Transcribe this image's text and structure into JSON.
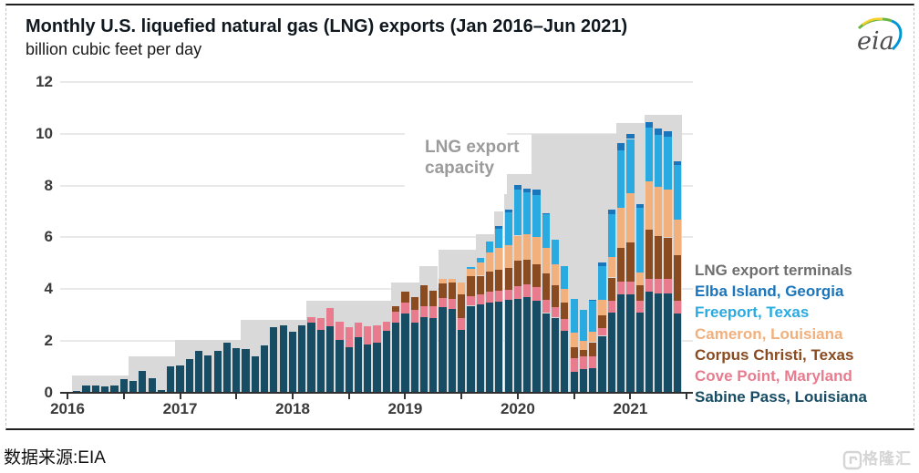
{
  "card": {
    "title": "Monthly U.S. liquefied natural gas (LNG) exports (Jan 2016–Jun 2021)",
    "subtitle": "billion cubic feet per day",
    "logo_text": "eia"
  },
  "capacity_label": {
    "line1": "LNG export",
    "line2": "capacity"
  },
  "legend": {
    "items": [
      {
        "label": "LNG export terminals",
        "color": "#6e6e6e"
      },
      {
        "label": "Elba Island, Georgia",
        "color": "#1b75bb"
      },
      {
        "label": "Freeport, Texas",
        "color": "#29abe2"
      },
      {
        "label": "Cameron, Louisiana",
        "color": "#f2b07d"
      },
      {
        "label": "Corpus Christi, Texas",
        "color": "#8a4b21"
      },
      {
        "label": "Cove Point, Maryland",
        "color": "#e87c8e"
      },
      {
        "label": "Sabine Pass, Louisiana",
        "color": "#174d64"
      }
    ]
  },
  "source_note": "数据来源:EIA",
  "watermark_text": "格隆汇",
  "chart_data": {
    "type": "bar",
    "stacked": true,
    "title": "Monthly U.S. liquefied natural gas (LNG) exports (Jan 2016–Jun 2021)",
    "ylabel": "billion cubic feet per day",
    "ylim": [
      0,
      12
    ],
    "y_ticks": [
      0,
      2,
      4,
      6,
      8,
      10,
      12
    ],
    "x_years": [
      "2016",
      "2017",
      "2018",
      "2019",
      "2020",
      "2021"
    ],
    "grid": true,
    "legend_position": "right",
    "annotation": "LNG export capacity",
    "categories": [
      "2016-01",
      "2016-02",
      "2016-03",
      "2016-04",
      "2016-05",
      "2016-06",
      "2016-07",
      "2016-08",
      "2016-09",
      "2016-10",
      "2016-11",
      "2016-12",
      "2017-01",
      "2017-02",
      "2017-03",
      "2017-04",
      "2017-05",
      "2017-06",
      "2017-07",
      "2017-08",
      "2017-09",
      "2017-10",
      "2017-11",
      "2017-12",
      "2018-01",
      "2018-02",
      "2018-03",
      "2018-04",
      "2018-05",
      "2018-06",
      "2018-07",
      "2018-08",
      "2018-09",
      "2018-10",
      "2018-11",
      "2018-12",
      "2019-01",
      "2019-02",
      "2019-03",
      "2019-04",
      "2019-05",
      "2019-06",
      "2019-07",
      "2019-08",
      "2019-09",
      "2019-10",
      "2019-11",
      "2019-12",
      "2020-01",
      "2020-02",
      "2020-03",
      "2020-04",
      "2020-05",
      "2020-06",
      "2020-07",
      "2020-08",
      "2020-09",
      "2020-10",
      "2020-11",
      "2020-12",
      "2021-01",
      "2021-02",
      "2021-03",
      "2021-04",
      "2021-05",
      "2021-06"
    ],
    "series": [
      {
        "name": "Sabine Pass, Louisiana",
        "color": "#174d64",
        "values": [
          0,
          0.08,
          0.3,
          0.29,
          0.26,
          0.3,
          0.52,
          0.47,
          0.85,
          0.55,
          0.12,
          1.03,
          1.05,
          1.3,
          1.62,
          1.45,
          1.62,
          1.95,
          1.72,
          1.7,
          1.42,
          1.82,
          2.55,
          2.62,
          2.35,
          2.6,
          2.72,
          2.42,
          2.57,
          2.03,
          1.75,
          2.15,
          1.87,
          1.92,
          2.4,
          2.72,
          3.05,
          2.72,
          2.92,
          2.88,
          3.32,
          3.23,
          2.42,
          3.36,
          3.42,
          3.48,
          3.52,
          3.6,
          3.62,
          3.68,
          3.55,
          3.08,
          2.9,
          2.38,
          0.82,
          0.92,
          0.95,
          2.2,
          3.1,
          3.8,
          3.8,
          3.1,
          3.9,
          3.85,
          3.85,
          3.05
        ]
      },
      {
        "name": "Cove Point, Maryland",
        "color": "#e87c8e",
        "values": [
          0,
          0,
          0,
          0,
          0,
          0,
          0,
          0,
          0,
          0,
          0,
          0,
          0,
          0,
          0,
          0,
          0,
          0,
          0,
          0,
          0,
          0,
          0,
          0,
          0,
          0,
          0.2,
          0.45,
          0.7,
          0.7,
          0.8,
          0.55,
          0.7,
          0.7,
          0.35,
          0.4,
          0.42,
          0.48,
          0.42,
          0.48,
          0.35,
          0.4,
          0.48,
          0.38,
          0.38,
          0.42,
          0.42,
          0.38,
          0.5,
          0.5,
          0.52,
          0.5,
          0.42,
          0.47,
          0.52,
          0.48,
          0.45,
          0.3,
          0.45,
          0.5,
          0.5,
          0.45,
          0.5,
          0.55,
          0.55,
          0.5
        ]
      },
      {
        "name": "Corpus Christi, Texas",
        "color": "#8a4b21",
        "values": [
          0,
          0,
          0,
          0,
          0,
          0,
          0,
          0,
          0,
          0,
          0,
          0,
          0,
          0,
          0,
          0,
          0,
          0,
          0,
          0,
          0,
          0,
          0,
          0,
          0,
          0,
          0,
          0,
          0,
          0,
          0,
          0,
          0,
          0,
          0,
          0.22,
          0.45,
          0.48,
          0.8,
          0.6,
          0.55,
          0.62,
          0.9,
          0.75,
          0.72,
          0.8,
          0.8,
          0.85,
          1,
          0.95,
          0.9,
          1.02,
          0.82,
          0.65,
          0.42,
          0.25,
          0.55,
          0.5,
          0.9,
          1.3,
          1.5,
          0.6,
          1.9,
          1.65,
          1.6,
          1.75
        ]
      },
      {
        "name": "Cameron, Louisiana",
        "color": "#f2b07d",
        "values": [
          0,
          0,
          0,
          0,
          0,
          0,
          0,
          0,
          0,
          0,
          0,
          0,
          0,
          0,
          0,
          0,
          0,
          0,
          0,
          0,
          0,
          0,
          0,
          0,
          0,
          0,
          0,
          0,
          0,
          0,
          0,
          0,
          0,
          0,
          0,
          0,
          0,
          0,
          0,
          0,
          0.18,
          0.15,
          0.45,
          0.3,
          0.5,
          0.72,
          0.85,
          0.88,
          0.95,
          1,
          1.05,
          1,
          0.82,
          0.52,
          0.55,
          0.35,
          0.42,
          0.6,
          0.8,
          1.55,
          1.9,
          0.5,
          1.85,
          1.9,
          1.85,
          1.4
        ]
      },
      {
        "name": "Freeport, Texas",
        "color": "#29abe2",
        "values": [
          0,
          0,
          0,
          0,
          0,
          0,
          0,
          0,
          0,
          0,
          0,
          0,
          0,
          0,
          0,
          0,
          0,
          0,
          0,
          0,
          0,
          0,
          0,
          0,
          0,
          0,
          0,
          0,
          0,
          0,
          0,
          0,
          0,
          0,
          0,
          0,
          0,
          0,
          0,
          0,
          0,
          0,
          0,
          0.08,
          0.18,
          0.43,
          0.75,
          1.25,
          1.78,
          1.6,
          1.62,
          1.3,
          0.94,
          0.88,
          1.3,
          1.2,
          1.18,
          1.3,
          1.65,
          2.2,
          2.1,
          2.5,
          2.1,
          2,
          2.05,
          2.1
        ]
      },
      {
        "name": "Elba Island, Georgia",
        "color": "#1b75bb",
        "values": [
          0,
          0,
          0,
          0,
          0,
          0,
          0,
          0,
          0,
          0,
          0,
          0,
          0,
          0,
          0,
          0,
          0,
          0,
          0,
          0,
          0,
          0,
          0,
          0,
          0,
          0,
          0,
          0,
          0,
          0,
          0,
          0,
          0,
          0,
          0,
          0,
          0,
          0,
          0,
          0,
          0,
          0,
          0,
          0,
          0,
          0,
          0.1,
          0.12,
          0.17,
          0.15,
          0.2,
          0.05,
          0,
          0,
          0,
          0,
          0.05,
          0.12,
          0.18,
          0.3,
          0.2,
          0.15,
          0.2,
          0.25,
          0.2,
          0.15
        ]
      }
    ],
    "capacity_series": {
      "name": "LNG export capacity",
      "color": "#d9d9d9",
      "values": [
        0,
        0.66,
        0.66,
        0.66,
        0.66,
        0.66,
        0.66,
        1.41,
        1.41,
        1.41,
        1.41,
        1.41,
        2.05,
        2.05,
        2.05,
        2.05,
        2.05,
        2.05,
        2.05,
        2.82,
        2.82,
        2.82,
        2.82,
        2.82,
        2.82,
        2.82,
        3.55,
        3.55,
        3.55,
        3.55,
        3.55,
        3.55,
        3.55,
        3.55,
        3.55,
        4.25,
        4.25,
        4.25,
        4.9,
        4.9,
        5.52,
        5.52,
        5.52,
        5.52,
        6.11,
        6.11,
        7,
        8.45,
        8.45,
        8.45,
        10,
        10,
        10,
        10,
        10,
        10,
        10,
        10,
        10,
        10.4,
        10.4,
        10.4,
        10.75,
        10.75,
        10.75,
        10.75
      ]
    }
  }
}
